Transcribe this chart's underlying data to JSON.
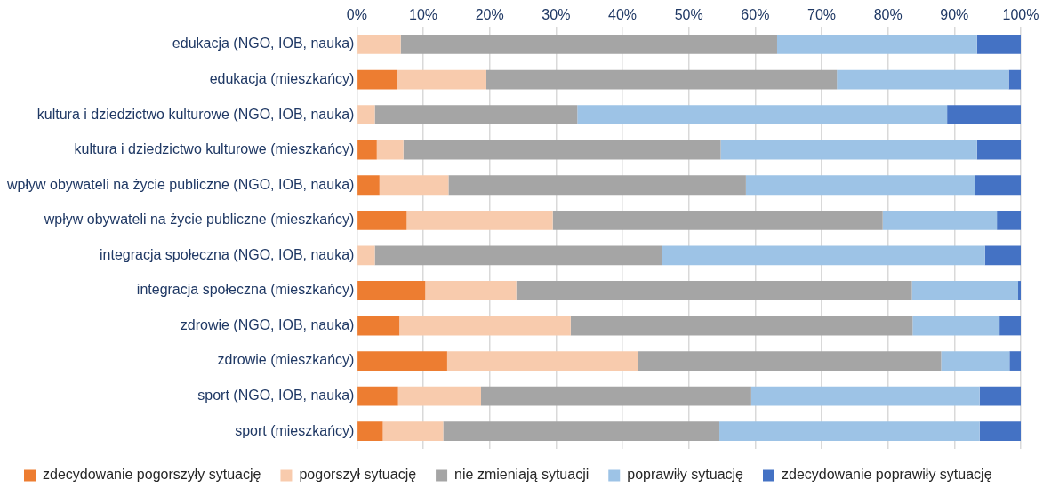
{
  "chart_data": {
    "type": "bar",
    "orientation": "horizontal",
    "stacked": true,
    "categories": [
      "edukacja (NGO, IOB, nauka)",
      "edukacja (mieszkańcy)",
      "kultura i dziedzictwo kulturowe (NGO, IOB, nauka)",
      "kultura i dziedzictwo kulturowe (mieszkańcy)",
      "wpływ obywateli na życie publiczne (NGO, IOB, nauka)",
      "wpływ obywateli na życie publiczne (mieszkańcy)",
      "integracja społeczna (NGO, IOB, nauka)",
      "integracja społeczna (mieszkańcy)",
      "zdrowie (NGO, IOB, nauka)",
      "zdrowie (mieszkańcy)",
      "sport (NGO, IOB, nauka)",
      "sport (mieszkańcy)"
    ],
    "series": [
      {
        "name": "zdecydowanie pogorszyły sytuację",
        "color": "#ed7d31",
        "values": [
          0,
          6.1,
          0,
          3.0,
          3.4,
          7.5,
          0,
          10.3,
          6.4,
          13.6,
          6.2,
          3.9
        ]
      },
      {
        "name": "pogorszył sytuację",
        "color": "#f8cbad",
        "values": [
          6.6,
          13.4,
          2.7,
          4.0,
          10.4,
          22.0,
          2.7,
          13.7,
          25.8,
          28.8,
          12.5,
          9.1
        ]
      },
      {
        "name": "nie zmieniają sytuacji",
        "color": "#a5a5a5",
        "values": [
          56.7,
          52.8,
          30.5,
          47.8,
          44.8,
          49.7,
          43.2,
          59.6,
          51.5,
          45.6,
          40.7,
          41.6
        ]
      },
      {
        "name": "poprawiły sytuację",
        "color": "#9dc3e6",
        "values": [
          30.1,
          25.9,
          55.7,
          38.6,
          34.5,
          17.2,
          48.7,
          16.0,
          13.1,
          10.3,
          34.4,
          39.2
        ]
      },
      {
        "name": "zdecydowanie poprawiły sytuację",
        "color": "#4472c4",
        "values": [
          6.6,
          1.8,
          11.1,
          6.6,
          6.9,
          3.6,
          5.4,
          0.4,
          3.2,
          1.7,
          6.2,
          6.2
        ]
      }
    ],
    "xlim": [
      0,
      100
    ],
    "xticks": [
      {
        "value": 0,
        "label": "0%"
      },
      {
        "value": 10,
        "label": "10%"
      },
      {
        "value": 20,
        "label": "20%"
      },
      {
        "value": 30,
        "label": "30%"
      },
      {
        "value": 40,
        "label": "40%"
      },
      {
        "value": 50,
        "label": "50%"
      },
      {
        "value": 60,
        "label": "60%"
      },
      {
        "value": 70,
        "label": "70%"
      },
      {
        "value": 80,
        "label": "80%"
      },
      {
        "value": 90,
        "label": "90%"
      },
      {
        "value": 100,
        "label": "100%"
      }
    ],
    "grid": "x",
    "legend": "bottom"
  }
}
